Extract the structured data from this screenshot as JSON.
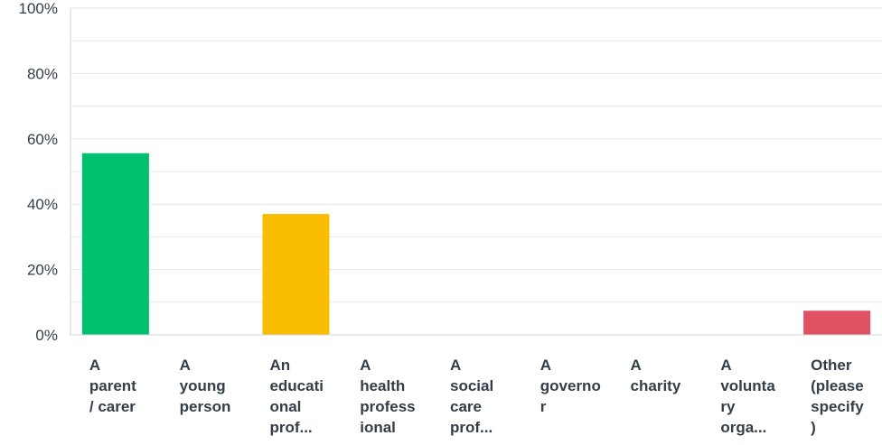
{
  "chart_data": {
    "type": "bar",
    "title": "",
    "xlabel": "",
    "ylabel": "",
    "ylim": [
      0,
      100
    ],
    "yticks": [
      "0%",
      "20%",
      "40%",
      "60%",
      "80%",
      "100%"
    ],
    "grid": true,
    "categories": [
      [
        "A",
        "parent",
        "/ carer"
      ],
      [
        "A",
        "young",
        "person"
      ],
      [
        "An",
        "educati",
        "onal",
        "prof..."
      ],
      [
        "A",
        "health",
        "profess",
        "ional"
      ],
      [
        "A",
        "social",
        "care",
        "prof..."
      ],
      [
        "A",
        "governo",
        "r"
      ],
      [
        "A",
        "charity"
      ],
      [
        "A",
        "volunta",
        "ry",
        "orga..."
      ],
      [
        "Other",
        "(please",
        "specify",
        ")"
      ]
    ],
    "values": [
      55.6,
      0,
      37.0,
      0,
      0,
      0,
      0,
      0,
      7.4
    ],
    "colors": [
      "#00bf6f",
      "#f9be00",
      "#f9be00",
      "#f9be00",
      "#f9be00",
      "#f9be00",
      "#f9be00",
      "#f9be00",
      "#e05263"
    ]
  }
}
